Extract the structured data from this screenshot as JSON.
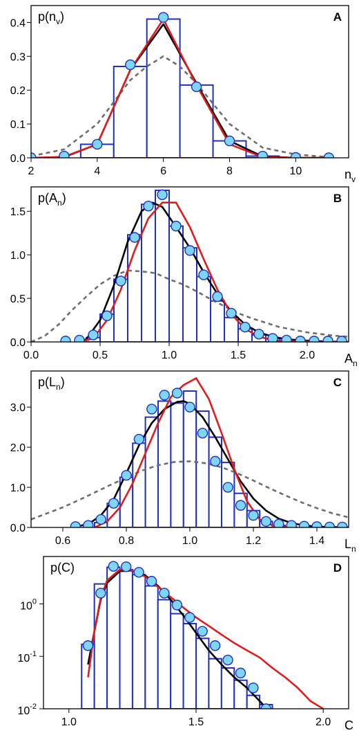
{
  "colors": {
    "bars": "#1e2fc8",
    "points": "#7fd6f2",
    "black": "#000000",
    "red": "#e01b1b",
    "gray": "#6e6e6e"
  },
  "chart_data": [
    {
      "type": "bar",
      "panel": "A",
      "ylabel_base": "p(n",
      "ylabel_sub": "v",
      "ylabel_end": ")",
      "xlabel_base": "n",
      "xlabel_sub": "v",
      "xlim": [
        2,
        11.6
      ],
      "ylim": [
        0,
        0.45
      ],
      "xticks": [
        2,
        4,
        6,
        8,
        10
      ],
      "xtick_labels": [
        "2",
        "4",
        "6",
        "8",
        "10"
      ],
      "yticks": [
        0,
        0.1,
        0.2,
        0.3,
        0.4
      ],
      "ytick_labels": [
        "0.0",
        "0.1",
        "0.2",
        "0.3",
        "0.4"
      ],
      "bin_width": 1,
      "bars": {
        "x": [
          4,
          5,
          6,
          7,
          8,
          9
        ],
        "values": [
          0.04,
          0.27,
          0.41,
          0.215,
          0.05,
          0.005
        ]
      },
      "points": {
        "x": [
          2,
          3,
          4,
          5,
          6,
          7,
          8,
          9,
          10,
          11
        ],
        "values": [
          0,
          0.005,
          0.04,
          0.275,
          0.415,
          0.21,
          0.05,
          0.005,
          0.001,
          0
        ]
      },
      "series": [
        {
          "style": "black",
          "x": [
            2,
            3,
            4,
            5,
            6,
            7,
            8,
            9,
            10,
            11
          ],
          "values": [
            0,
            0.002,
            0.04,
            0.26,
            0.395,
            0.22,
            0.05,
            0.004,
            0,
            0
          ]
        },
        {
          "style": "red",
          "x": [
            2,
            3,
            4,
            5,
            6,
            7,
            8,
            9,
            10,
            11
          ],
          "values": [
            0,
            0.003,
            0.04,
            0.26,
            0.41,
            0.215,
            0.04,
            0.002,
            0,
            0
          ]
        },
        {
          "style": "gray",
          "x": [
            2,
            3,
            4,
            5,
            5.5,
            6,
            6.5,
            7,
            8,
            9,
            10,
            11
          ],
          "values": [
            0.005,
            0.025,
            0.1,
            0.23,
            0.27,
            0.3,
            0.27,
            0.22,
            0.1,
            0.03,
            0.01,
            0.002
          ]
        }
      ]
    },
    {
      "type": "bar",
      "panel": "B",
      "ylabel_base": "p(A",
      "ylabel_sub": "n",
      "ylabel_end": ")",
      "xlabel_base": "A",
      "xlabel_sub": "n",
      "xlim": [
        0,
        2.3
      ],
      "ylim": [
        0,
        1.78
      ],
      "xticks": [
        0,
        0.5,
        1.0,
        1.5,
        2.0
      ],
      "xtick_labels": [
        "0.0",
        "0.5",
        "1.0",
        "1.5",
        "2.0"
      ],
      "yticks": [
        0,
        0.5,
        1.0,
        1.5
      ],
      "ytick_labels": [
        "0.0",
        "0.5",
        "1.0",
        "1.5"
      ],
      "bin_width": 0.1,
      "bars": {
        "x": [
          0.45,
          0.55,
          0.65,
          0.75,
          0.85,
          0.95,
          1.05,
          1.15,
          1.25,
          1.35,
          1.45,
          1.55,
          1.65,
          1.75,
          1.85,
          1.95
        ],
        "values": [
          0.05,
          0.32,
          0.72,
          1.23,
          1.58,
          1.74,
          1.33,
          1.08,
          0.75,
          0.47,
          0.28,
          0.15,
          0.08,
          0.04,
          0.02,
          0.01
        ]
      },
      "points": {
        "x": [
          0.25,
          0.35,
          0.45,
          0.55,
          0.65,
          0.75,
          0.85,
          0.95,
          1.05,
          1.15,
          1.25,
          1.35,
          1.45,
          1.55,
          1.65,
          1.75,
          1.85,
          1.95,
          2.05,
          2.15,
          2.25
        ],
        "values": [
          0.01,
          0.02,
          0.08,
          0.3,
          0.7,
          1.2,
          1.56,
          1.69,
          1.33,
          1.05,
          0.77,
          0.52,
          0.33,
          0.17,
          0.09,
          0.04,
          0.02,
          0.01,
          0.01,
          0.01,
          0.01
        ]
      },
      "series": [
        {
          "style": "black",
          "x": [
            0.33,
            0.4,
            0.5,
            0.6,
            0.7,
            0.8,
            0.88,
            0.95,
            1.05,
            1.15,
            1.25,
            1.35,
            1.45,
            1.55,
            1.65,
            1.75,
            1.85,
            1.95,
            2.05,
            2.15,
            2.3
          ],
          "values": [
            0,
            0.03,
            0.25,
            0.65,
            1.15,
            1.5,
            1.6,
            1.55,
            1.32,
            1.08,
            0.8,
            0.55,
            0.35,
            0.2,
            0.11,
            0.06,
            0.03,
            0.02,
            0.01,
            0.005,
            0
          ]
        },
        {
          "style": "red",
          "x": [
            0.35,
            0.45,
            0.55,
            0.65,
            0.75,
            0.85,
            0.95,
            1.05,
            1.15,
            1.25,
            1.35,
            1.45,
            1.55,
            1.65,
            1.75,
            1.85,
            1.95,
            2.1,
            2.3
          ],
          "values": [
            0,
            0.04,
            0.25,
            0.6,
            1.05,
            1.42,
            1.6,
            1.6,
            1.32,
            0.95,
            0.6,
            0.32,
            0.15,
            0.06,
            0.02,
            0.01,
            0.005,
            0,
            0
          ]
        },
        {
          "style": "gray",
          "x": [
            0,
            0.1,
            0.2,
            0.3,
            0.4,
            0.5,
            0.6,
            0.7,
            0.8,
            0.9,
            1.0,
            1.1,
            1.2,
            1.3,
            1.4,
            1.5,
            1.6,
            1.7,
            1.8,
            1.9,
            2.0,
            2.1,
            2.2,
            2.3
          ],
          "values": [
            0,
            0.07,
            0.2,
            0.37,
            0.52,
            0.66,
            0.76,
            0.82,
            0.81,
            0.79,
            0.72,
            0.66,
            0.58,
            0.49,
            0.41,
            0.33,
            0.27,
            0.22,
            0.17,
            0.14,
            0.11,
            0.09,
            0.07,
            0.06
          ]
        }
      ]
    },
    {
      "type": "bar",
      "panel": "C",
      "ylabel_base": "p(L",
      "ylabel_sub": "n",
      "ylabel_end": ")",
      "xlabel_base": "L",
      "xlabel_sub": "n",
      "xlim": [
        0.5,
        1.5
      ],
      "ylim": [
        0,
        3.9
      ],
      "xticks": [
        0.6,
        0.8,
        1.0,
        1.2,
        1.4
      ],
      "xtick_labels": [
        "0.6",
        "0.8",
        "1.0",
        "1.2",
        "1.4"
      ],
      "yticks": [
        0,
        1.0,
        2.0,
        3.0
      ],
      "ytick_labels": [
        "0.0",
        "1.0",
        "2.0",
        "3.0"
      ],
      "bin_width": 0.04,
      "bars": {
        "x": [
          0.72,
          0.76,
          0.8,
          0.84,
          0.88,
          0.92,
          0.96,
          1.0,
          1.04,
          1.08,
          1.12,
          1.16,
          1.2,
          1.24,
          1.28
        ],
        "values": [
          0.12,
          0.6,
          1.25,
          2.1,
          2.75,
          3.15,
          3.1,
          3.4,
          2.9,
          2.25,
          1.62,
          0.85,
          0.42,
          0.15,
          0.05
        ]
      },
      "points": {
        "x": [
          0.64,
          0.68,
          0.72,
          0.76,
          0.8,
          0.84,
          0.88,
          0.92,
          0.96,
          1.0,
          1.04,
          1.08,
          1.12,
          1.16,
          1.2,
          1.24,
          1.28,
          1.32,
          1.36,
          1.4,
          1.44,
          1.48
        ],
        "values": [
          0.02,
          0.05,
          0.2,
          0.6,
          1.3,
          2.2,
          2.95,
          3.3,
          3.35,
          3.0,
          2.35,
          1.65,
          1.0,
          0.55,
          0.3,
          0.15,
          0.08,
          0.05,
          0.03,
          0.02,
          0.01,
          0.01
        ]
      },
      "series": [
        {
          "style": "black",
          "x": [
            0.64,
            0.68,
            0.72,
            0.76,
            0.8,
            0.84,
            0.88,
            0.92,
            0.96,
            0.98,
            1.0,
            1.04,
            1.08,
            1.12,
            1.16,
            1.2,
            1.24,
            1.28,
            1.32,
            1.36,
            1.4,
            1.44,
            1.5
          ],
          "values": [
            0.02,
            0.08,
            0.3,
            0.7,
            1.35,
            2.05,
            2.6,
            2.95,
            3.13,
            3.15,
            3.08,
            2.75,
            2.25,
            1.7,
            1.15,
            0.72,
            0.42,
            0.22,
            0.11,
            0.05,
            0.02,
            0.01,
            0
          ]
        },
        {
          "style": "red",
          "x": [
            0.7,
            0.74,
            0.78,
            0.82,
            0.86,
            0.9,
            0.94,
            0.98,
            1.02,
            1.06,
            1.1,
            1.14,
            1.18,
            1.22,
            1.26,
            1.3,
            1.34
          ],
          "values": [
            0,
            0.15,
            0.5,
            1.1,
            1.85,
            2.6,
            3.25,
            3.55,
            3.72,
            3.2,
            2.35,
            1.45,
            0.65,
            0.2,
            0.05,
            0.01,
            0
          ]
        },
        {
          "style": "gray",
          "x": [
            0.5,
            0.55,
            0.6,
            0.65,
            0.7,
            0.75,
            0.8,
            0.85,
            0.9,
            0.95,
            1.0,
            1.05,
            1.1,
            1.15,
            1.2,
            1.25,
            1.3,
            1.35,
            1.4,
            1.45,
            1.5
          ],
          "values": [
            0.2,
            0.35,
            0.5,
            0.68,
            0.87,
            1.06,
            1.24,
            1.42,
            1.55,
            1.63,
            1.65,
            1.6,
            1.5,
            1.35,
            1.17,
            0.98,
            0.8,
            0.63,
            0.48,
            0.35,
            0.25
          ]
        }
      ]
    },
    {
      "type": "bar",
      "panel": "D",
      "yscale": "log",
      "ylabel_base": "p(C)",
      "xlabel_base": "C",
      "xlim": [
        0.9,
        2.1
      ],
      "ylim": [
        0.01,
        8
      ],
      "xticks": [
        1.0,
        1.5,
        2.0
      ],
      "xtick_labels": [
        "1.0",
        "1.5",
        "2.0"
      ],
      "yticks": [
        0.01,
        0.1,
        1,
        10
      ],
      "ytick_mantissa": "10",
      "ytick_exponents": [
        "-2",
        "-1",
        "0",
        ""
      ],
      "bin_width": 0.05,
      "bars": {
        "x": [
          1.075,
          1.125,
          1.175,
          1.225,
          1.275,
          1.325,
          1.375,
          1.425,
          1.475,
          1.525,
          1.575,
          1.625,
          1.675,
          1.725,
          1.775
        ],
        "values": [
          0.17,
          2.4,
          5.0,
          4.5,
          3.6,
          2.2,
          1.2,
          0.65,
          0.42,
          0.22,
          0.09,
          0.06,
          0.035,
          0.018,
          0.012
        ]
      },
      "points": {
        "x": [
          1.075,
          1.125,
          1.175,
          1.225,
          1.275,
          1.325,
          1.375,
          1.425,
          1.475,
          1.525,
          1.575,
          1.625,
          1.675,
          1.725,
          1.775
        ],
        "values": [
          0.16,
          1.6,
          5.2,
          5.1,
          4.0,
          2.7,
          1.6,
          0.95,
          0.55,
          0.3,
          0.16,
          0.085,
          0.048,
          0.025,
          0.01
        ]
      },
      "series": [
        {
          "style": "black",
          "x": [
            1.075,
            1.1,
            1.125,
            1.15,
            1.2,
            1.25,
            1.3,
            1.35,
            1.4,
            1.45,
            1.5,
            1.55,
            1.6,
            1.65,
            1.7,
            1.75,
            1.78
          ],
          "values": [
            0.07,
            0.3,
            1.2,
            2.5,
            4.2,
            4.3,
            3.5,
            2.2,
            1.2,
            0.6,
            0.28,
            0.13,
            0.07,
            0.04,
            0.025,
            0.014,
            0.01
          ]
        },
        {
          "style": "red",
          "x": [
            1.075,
            1.1,
            1.125,
            1.15,
            1.2,
            1.25,
            1.3,
            1.35,
            1.4,
            1.45,
            1.5,
            1.55,
            1.6,
            1.65,
            1.7,
            1.75,
            1.8,
            1.85,
            1.9,
            1.95,
            2.0
          ],
          "values": [
            0.04,
            0.3,
            1.3,
            2.8,
            4.5,
            4.3,
            3.3,
            2.1,
            1.35,
            0.85,
            0.55,
            0.38,
            0.26,
            0.18,
            0.13,
            0.095,
            0.06,
            0.04,
            0.025,
            0.014,
            0.01
          ]
        }
      ]
    }
  ]
}
